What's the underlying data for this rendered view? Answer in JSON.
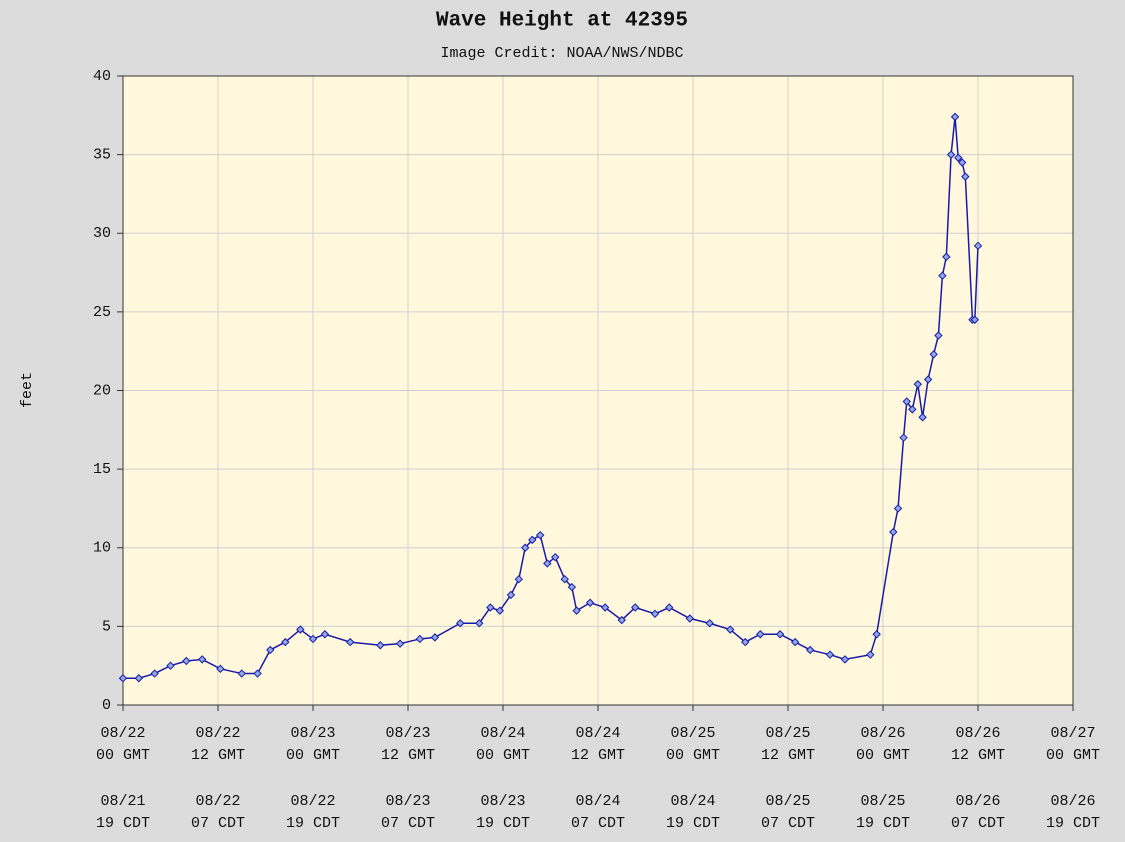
{
  "chart_data": {
    "type": "line",
    "title": "Wave Height at 42395",
    "subtitle": "Image Credit: NOAA/NWS/NDBC",
    "ylabel": "feet",
    "color": "#1a1aa8",
    "x": [
      0,
      2,
      4,
      6,
      8,
      10,
      12.3,
      15,
      17,
      18.6,
      20.5,
      22.4,
      24,
      25.5,
      28.7,
      32.5,
      35,
      37.5,
      39.4,
      42.6,
      45,
      46.4,
      47.6,
      49,
      50,
      50.8,
      51.7,
      52.7,
      53.6,
      54.6,
      55.8,
      56.7,
      57.3,
      59,
      60.9,
      63,
      64.7,
      67.2,
      69,
      71.6,
      74.1,
      76.7,
      78.6,
      80.5,
      83,
      84.9,
      86.8,
      89.3,
      91.2,
      94.4,
      95.2,
      97.3,
      97.9,
      98.6,
      99,
      99.7,
      100.4,
      101,
      101.7,
      102.4,
      103,
      103.5,
      104,
      104.6,
      105.1,
      105.5,
      106,
      106.4,
      107.3,
      107.6,
      108
    ],
    "values": [
      1.7,
      1.7,
      2.0,
      2.5,
      2.8,
      2.9,
      2.3,
      2.0,
      2.0,
      3.5,
      4.0,
      4.8,
      4.2,
      4.5,
      4.0,
      3.8,
      3.9,
      4.2,
      4.3,
      5.2,
      5.2,
      6.2,
      6.0,
      7.0,
      8.0,
      10.0,
      10.5,
      10.8,
      9.0,
      9.4,
      8.0,
      7.5,
      6.0,
      6.5,
      6.2,
      5.4,
      6.2,
      5.8,
      6.2,
      5.5,
      5.2,
      4.8,
      4.0,
      4.5,
      4.5,
      4.0,
      3.5,
      3.2,
      2.9,
      3.2,
      4.5,
      11.0,
      12.5,
      17.0,
      19.3,
      18.8,
      20.4,
      18.3,
      20.7,
      22.3,
      23.5,
      27.3,
      28.5,
      35.0,
      37.4,
      34.8,
      34.5,
      33.6,
      24.5,
      24.5,
      29.2
    ],
    "xlim": [
      0,
      120
    ],
    "xticks": [
      {
        "value": 0,
        "label": "08/22 00 GMT"
      },
      {
        "value": 12,
        "label": "08/22 12 GMT"
      },
      {
        "value": 24,
        "label": "08/23 00 GMT"
      },
      {
        "value": 36,
        "label": "08/23 12 GMT"
      },
      {
        "value": 48,
        "label": "08/24 00 GMT"
      },
      {
        "value": 60,
        "label": "08/24 12 GMT"
      },
      {
        "value": 72,
        "label": "08/25 00 GMT"
      },
      {
        "value": 84,
        "label": "08/25 12 GMT"
      },
      {
        "value": 96,
        "label": "08/26 00 GMT"
      },
      {
        "value": 108,
        "label": "08/26 12 GMT"
      },
      {
        "value": 120,
        "label": "08/27 00 GMT"
      }
    ],
    "xticks_local": [
      {
        "value": 0,
        "label": "08/21 19 CDT"
      },
      {
        "value": 12,
        "label": "08/22 07 CDT"
      },
      {
        "value": 24,
        "label": "08/22 19 CDT"
      },
      {
        "value": 36,
        "label": "08/23 07 CDT"
      },
      {
        "value": 48,
        "label": "08/23 19 CDT"
      },
      {
        "value": 60,
        "label": "08/24 07 CDT"
      },
      {
        "value": 72,
        "label": "08/24 19 CDT"
      },
      {
        "value": 84,
        "label": "08/25 07 CDT"
      },
      {
        "value": 96,
        "label": "08/25 19 CDT"
      },
      {
        "value": 108,
        "label": "08/26 07 CDT"
      },
      {
        "value": 120,
        "label": "08/26 19 CDT"
      }
    ],
    "ylim": [
      0,
      40
    ],
    "yticks": [
      0,
      5,
      10,
      15,
      20,
      25,
      30,
      35,
      40
    ],
    "grid": true,
    "markers": true
  }
}
